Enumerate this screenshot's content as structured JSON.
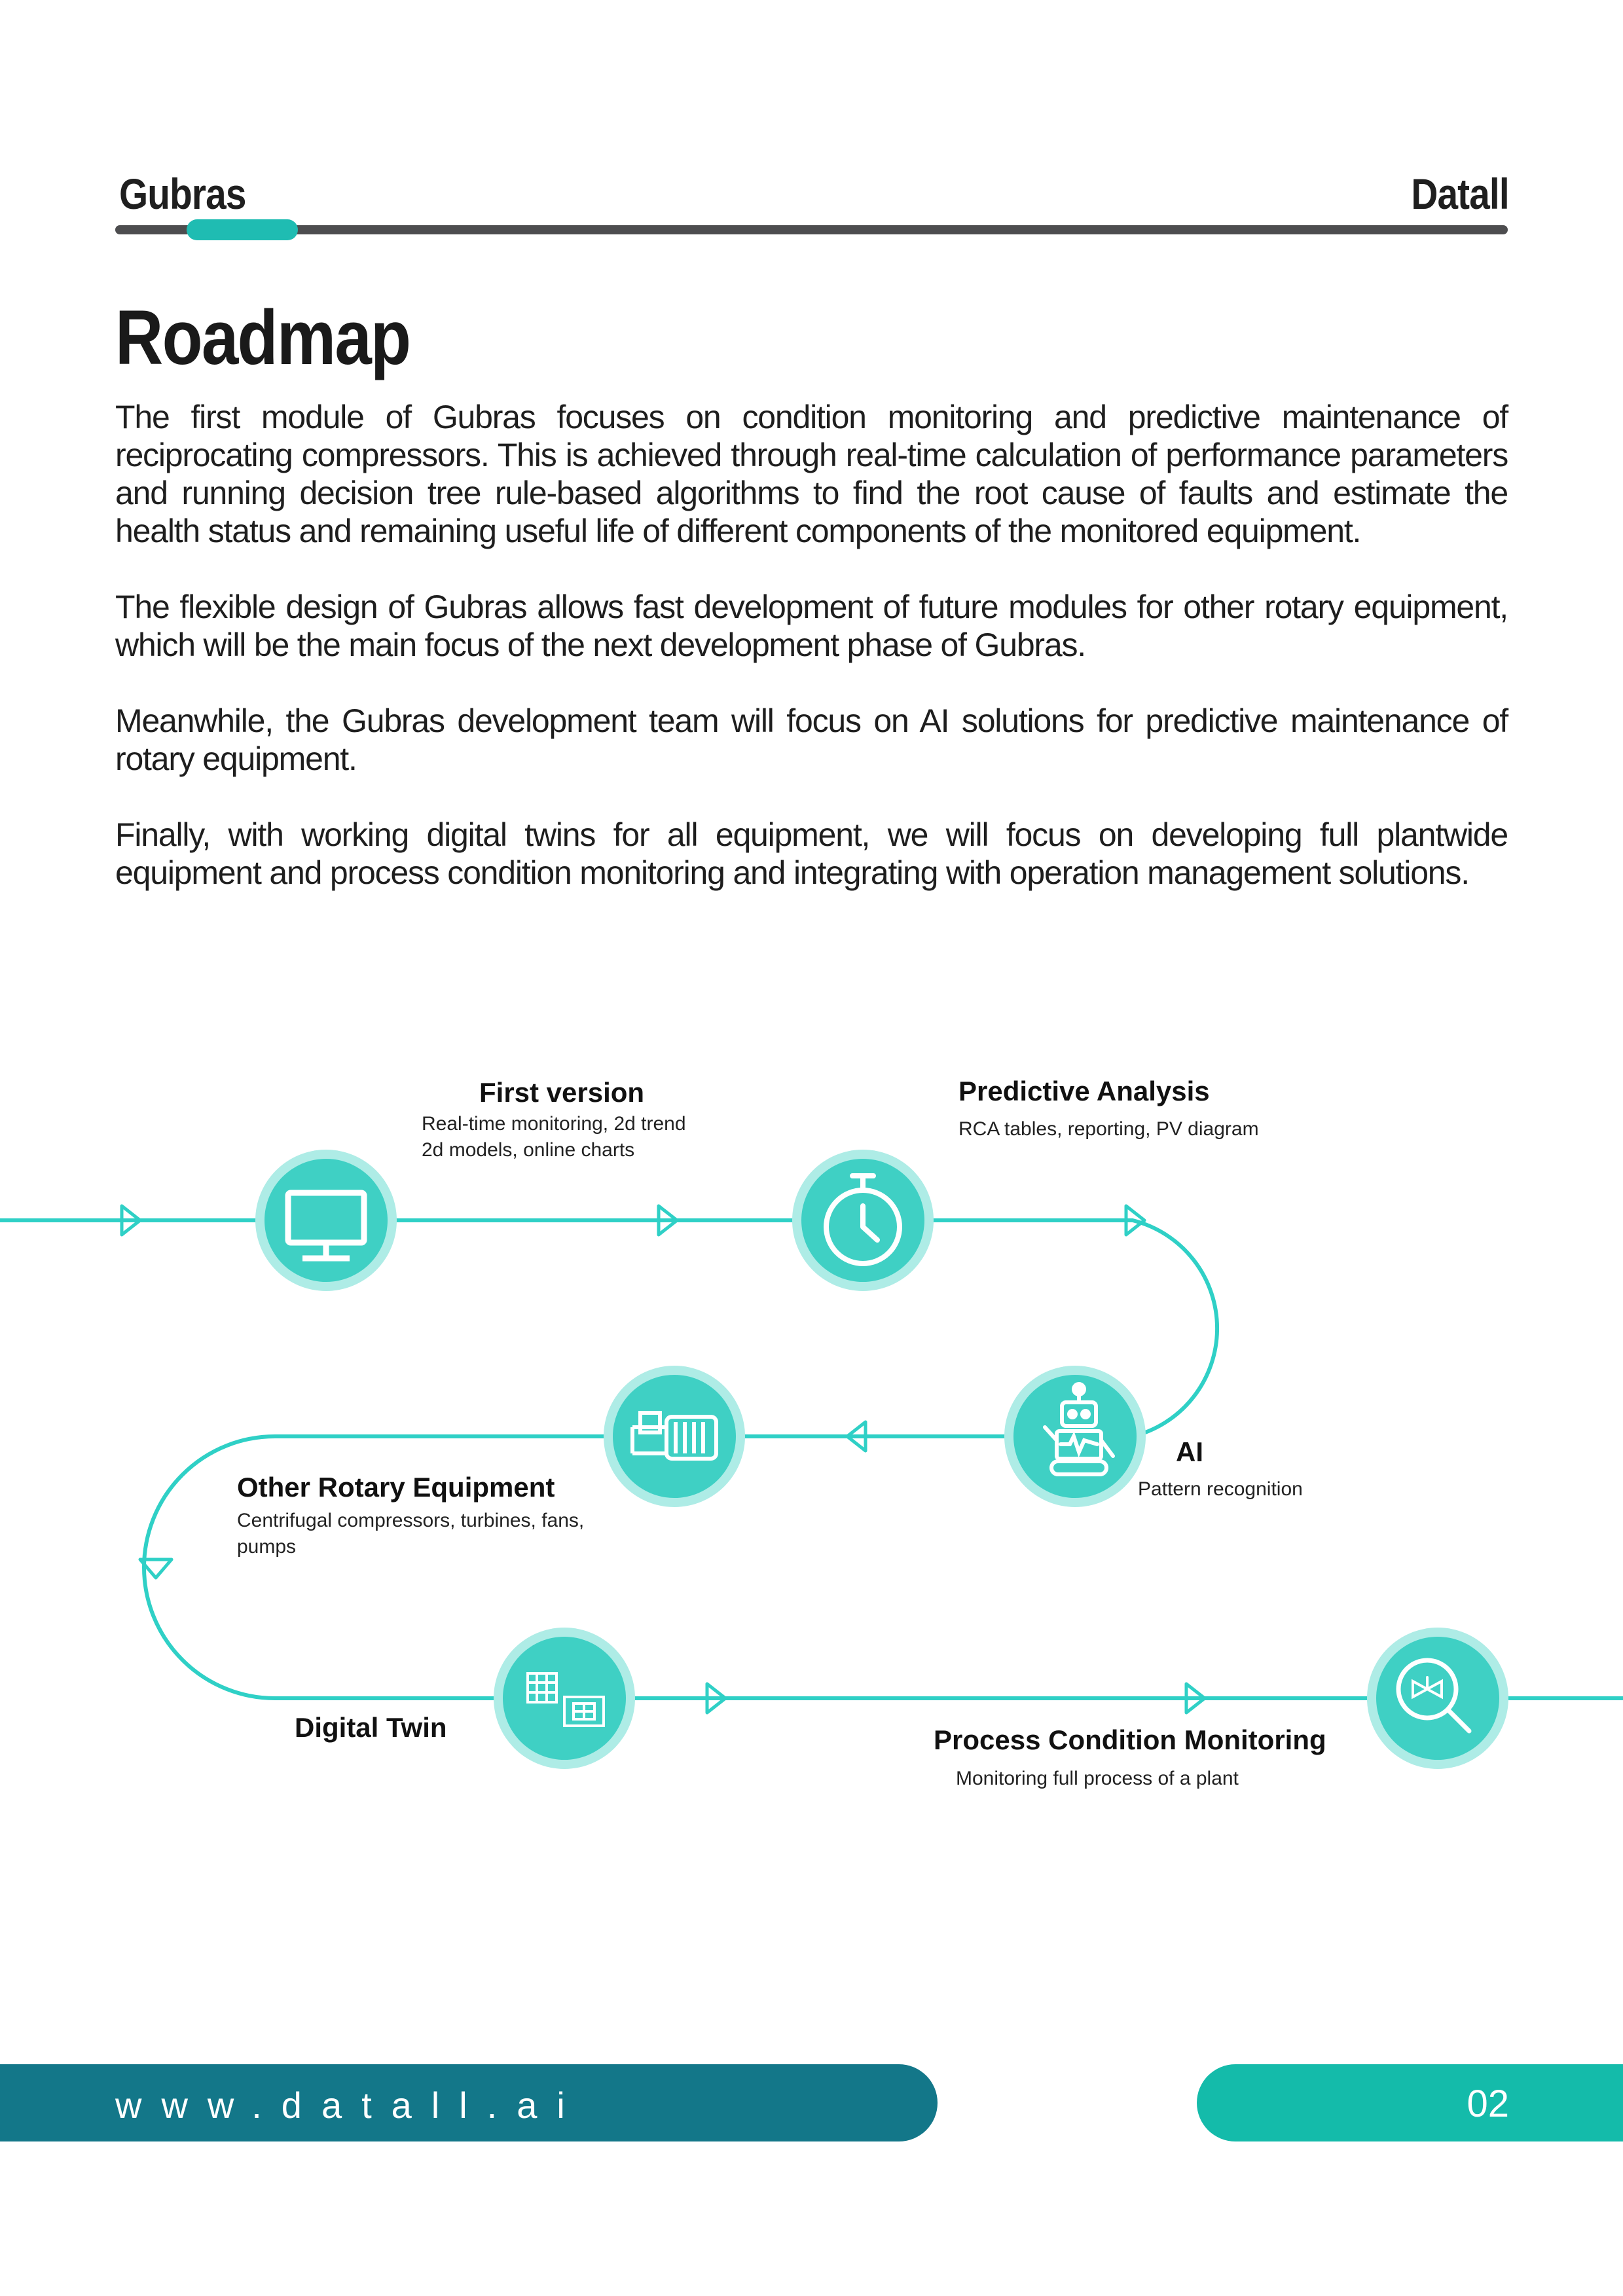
{
  "header": {
    "left": "Gubras",
    "right": "Datall"
  },
  "page_title": "Roadmap",
  "paragraphs": [
    "The first module of Gubras focuses on condition monitoring and predictive maintenance of reciprocating compressors. This is achieved through real-time calculation of performance parameters and running decision tree rule-based algorithms to find the root cause of faults and estimate the health status and remaining useful life of different components of the monitored equipment.",
    "The flexible design of Gubras allows fast development of future modules for other rotary equipment, which will be the main focus of the next development phase of Gubras.",
    "Meanwhile, the Gubras development team will focus on AI solutions for predictive maintenance of rotary equipment.",
    "Finally, with working digital twins for all equipment, we will focus on developing full plantwide equipment and process condition monitoring and integrating with operation management solutions."
  ],
  "roadmap": {
    "first_version": {
      "title": "First version",
      "sub1": "Real-time monitoring, 2d trend",
      "sub2": "2d models, online charts",
      "icon": "monitor-icon"
    },
    "predictive": {
      "title": "Predictive Analysis",
      "sub1": "RCA tables, reporting, PV diagram",
      "icon": "stopwatch-icon"
    },
    "ai": {
      "title": "AI",
      "sub1": "Pattern recognition",
      "icon": "robot-icon"
    },
    "other_rotary": {
      "title": "Other Rotary Equipment",
      "sub1": "Centrifugal compressors, turbines, fans,",
      "sub2": "pumps",
      "icon": "pump-icon"
    },
    "digital_twin": {
      "title": "Digital Twin",
      "icon": "digital-twin-icon"
    },
    "process": {
      "title": "Process Condition Monitoring",
      "sub1": "Monitoring full process of a plant",
      "icon": "magnifier-valve-icon"
    }
  },
  "colors": {
    "accent": "#1fbcb2",
    "footer_dark": "#137789",
    "footer_light": "#14bbaa",
    "path": "#2fd0c6"
  },
  "footer": {
    "url": "www.datall.ai",
    "page": "02"
  }
}
